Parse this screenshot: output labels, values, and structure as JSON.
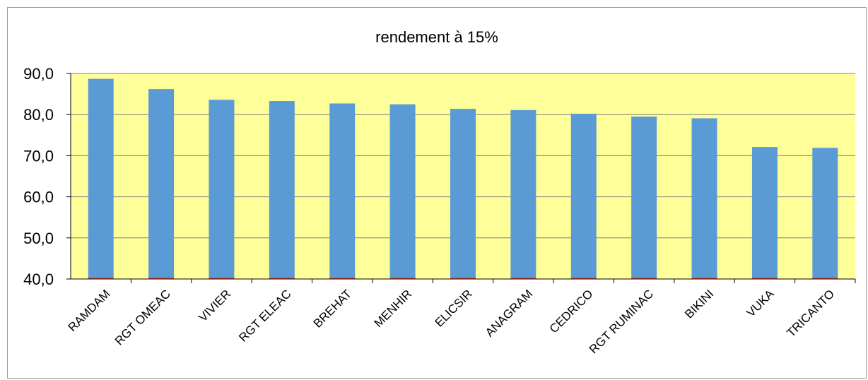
{
  "chart_data": {
    "type": "bar",
    "title": "rendement à 15%",
    "xlabel": "",
    "ylabel": "",
    "categories": [
      "RAMDAM",
      "RGT OMEAC",
      "VIVIER",
      "RGT ELEAC",
      "BREHAT",
      "MENHIR",
      "ELICSIR",
      "ANAGRAM",
      "CEDRICO",
      "RGT RUMINAC",
      "BIKINI",
      "VUKA",
      "TRICANTO"
    ],
    "values": [
      88.7,
      86.2,
      83.6,
      83.3,
      82.7,
      82.5,
      81.4,
      81.1,
      80.2,
      79.5,
      79.1,
      72.1,
      71.9
    ],
    "ylim": [
      40,
      90
    ],
    "yticks": [
      "40,0",
      "50,0",
      "60,0",
      "70,0",
      "80,0",
      "90,0"
    ],
    "grid": true,
    "legend": "none",
    "colors": {
      "bar": "#5b9bd5",
      "plot_background": "#ffff99",
      "gridline": "#7f7f7f",
      "bar_base": "#e74c3c"
    }
  }
}
